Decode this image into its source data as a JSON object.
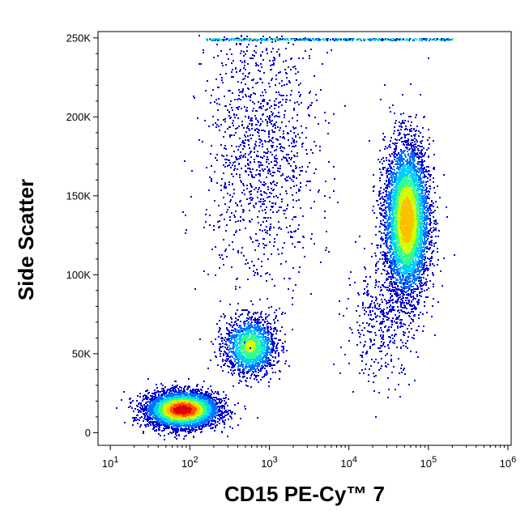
{
  "chart_data": {
    "type": "scatter",
    "style": "density-dot-plot",
    "xlabel": "CD15 PE-Cy™ 7",
    "ylabel": "Side Scatter",
    "x_scale": "log",
    "xlim": [
      7,
      10000000
    ],
    "x_range_shown": [
      7,
      1100000
    ],
    "ylim": [
      -8000,
      254000
    ],
    "x_ticks": [
      {
        "base": "10",
        "exp": "1",
        "value": 10
      },
      {
        "base": "10",
        "exp": "2",
        "value": 100
      },
      {
        "base": "10",
        "exp": "3",
        "value": 1000
      },
      {
        "base": "10",
        "exp": "4",
        "value": 10000
      },
      {
        "base": "10",
        "exp": "5",
        "value": 100000
      },
      {
        "base": "10",
        "exp": "6",
        "value": 1000000
      }
    ],
    "y_ticks": [
      {
        "label": "0",
        "value": 0
      },
      {
        "label": "50K",
        "value": 50000
      },
      {
        "label": "100K",
        "value": 100000
      },
      {
        "label": "150K",
        "value": 150000
      },
      {
        "label": "200K",
        "value": 200000
      },
      {
        "label": "250K",
        "value": 250000
      }
    ],
    "grid": false,
    "colormap": [
      "#0000cc",
      "#0070ff",
      "#00d0ff",
      "#30ff90",
      "#d0ff00",
      "#ffc000",
      "#ff5000",
      "#e00000"
    ],
    "populations": [
      {
        "name": "",
        "x_log_center": 1.9,
        "x_log_sd": 0.22,
        "y_center": 15000,
        "y_sd": 5500,
        "count": 5200,
        "peak_density": 1.0
      },
      {
        "name": "",
        "x_log_center": 2.75,
        "x_log_sd": 0.16,
        "y_center": 55000,
        "y_sd": 9000,
        "count": 1700,
        "peak_density": 0.55
      },
      {
        "name": "",
        "x_log_center": 4.72,
        "x_log_sd": 0.14,
        "y_center": 135000,
        "y_sd": 24000,
        "count": 6200,
        "peak_density": 0.75
      },
      {
        "name": "",
        "x_log_center": 2.9,
        "x_log_sd": 0.35,
        "y_center": 180000,
        "y_sd": 45000,
        "count": 1300,
        "peak_density": 0.12
      },
      {
        "name": "",
        "x_log_center": 4.4,
        "x_log_sd": 0.22,
        "y_center": 70000,
        "y_sd": 18000,
        "count": 400,
        "peak_density": 0.12
      }
    ],
    "saturated_band": {
      "y_value": 250000,
      "x_log_range": [
        2.2,
        5.3
      ]
    }
  }
}
